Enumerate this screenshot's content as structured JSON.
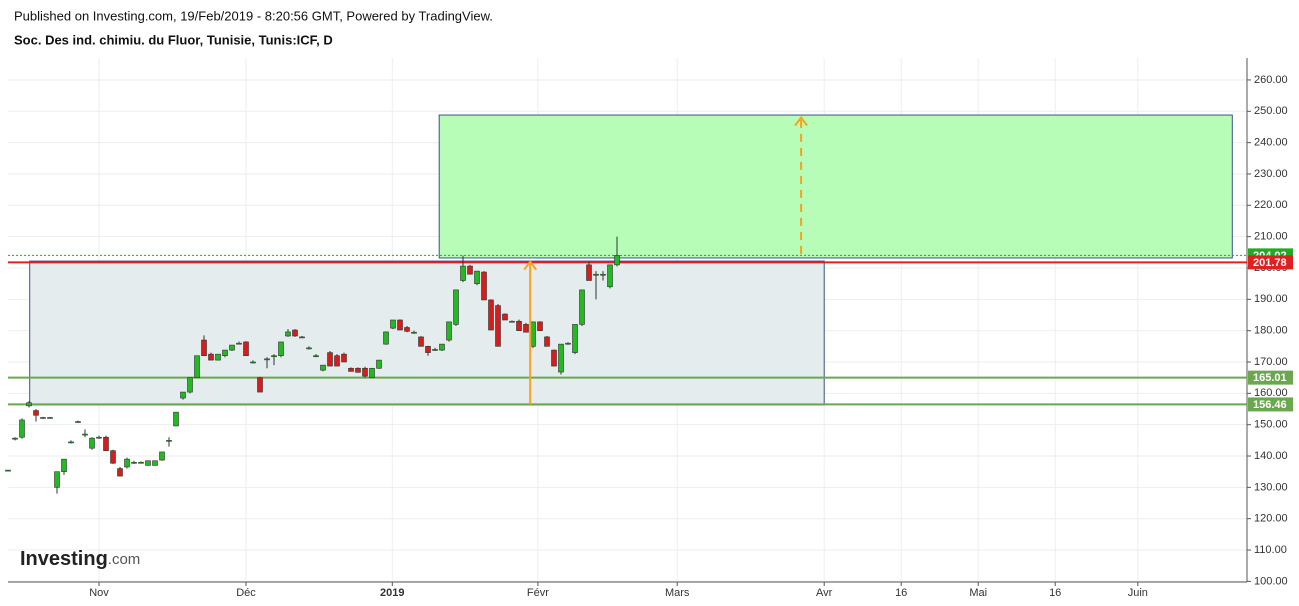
{
  "header": {
    "published": "Published on Investing.com, 19/Feb/2019 - 8:20:56 GMT, Powered by TradingView.",
    "instrument": "Soc. Des ind. chimiu. du Fluor, Tunisie, Tunis:ICF, D"
  },
  "logo": {
    "name": "Investing",
    "suffix": ".com"
  },
  "chart_data": {
    "type": "candlestick",
    "grid": true,
    "xlim": [
      -13,
      164
    ],
    "ylim": [
      99.8,
      267
    ],
    "xticks": [
      {
        "value": 0,
        "label": "Nov"
      },
      {
        "value": 21,
        "label": "Déc"
      },
      {
        "value": 41.9,
        "label": "2019"
      },
      {
        "value": 62.7,
        "label": "Févr"
      },
      {
        "value": 82.6,
        "label": "Mars"
      },
      {
        "value": 103.6,
        "label": "Avr"
      },
      {
        "value": 114.6,
        "label": "16"
      },
      {
        "value": 125.6,
        "label": "Mai"
      },
      {
        "value": 136.6,
        "label": "16"
      },
      {
        "value": 148.4,
        "label": "Juin"
      }
    ],
    "yticks": [
      {
        "value": 100,
        "label": "100.00"
      },
      {
        "value": 110,
        "label": "110.00"
      },
      {
        "value": 120,
        "label": "120.00"
      },
      {
        "value": 130,
        "label": "130.00"
      },
      {
        "value": 140,
        "label": "140.00"
      },
      {
        "value": 150,
        "label": "150.00"
      },
      {
        "value": 160,
        "label": "160.00"
      },
      {
        "value": 170,
        "label": "170.00"
      },
      {
        "value": 180,
        "label": "180.00"
      },
      {
        "value": 190,
        "label": "190.00"
      },
      {
        "value": 200,
        "label": "200.00"
      },
      {
        "value": 210,
        "label": "210.00"
      },
      {
        "value": 220,
        "label": "220.00"
      },
      {
        "value": 230,
        "label": "230.00"
      },
      {
        "value": 240,
        "label": "240.00"
      },
      {
        "value": 250,
        "label": "250.00"
      },
      {
        "value": 260,
        "label": "260.00"
      }
    ],
    "series": [
      {
        "up_color": "#22b922",
        "down_color": "#d41e1e",
        "x": [
          -13,
          -12,
          -11,
          -10,
          -9,
          -8,
          -7,
          -6,
          -5,
          -4,
          -3,
          -2,
          -1,
          0,
          1,
          2,
          3,
          4,
          5,
          6,
          7,
          8,
          9,
          10,
          11,
          12,
          13,
          14,
          15,
          16,
          17,
          18,
          19,
          20,
          21,
          22,
          23,
          24,
          25,
          26,
          27,
          28,
          29,
          30,
          31,
          32,
          33,
          34,
          35,
          36,
          37,
          38,
          39,
          40,
          41,
          42,
          43,
          44,
          45,
          46,
          47,
          48,
          49,
          50,
          51,
          52,
          53,
          54,
          55,
          56,
          57,
          58,
          59,
          60,
          61,
          62,
          63,
          64,
          65,
          66,
          67,
          68,
          69,
          70,
          71,
          72,
          73,
          74
        ],
        "open": [
          135.5,
          145.7,
          146,
          156,
          154.5,
          152.3,
          152.3,
          130,
          135,
          144.5,
          151,
          147,
          142.5,
          146,
          146,
          141.7,
          136,
          136.5,
          138,
          138,
          137,
          137,
          138.7,
          145,
          149.6,
          158.5,
          160.4,
          165,
          177,
          172.5,
          170.6,
          172,
          173.8,
          176,
          176.4,
          170,
          165,
          171,
          172,
          172,
          178.3,
          180.2,
          178,
          174.5,
          172,
          167.4,
          173,
          172,
          172.5,
          168,
          168,
          168,
          165,
          168,
          175.7,
          180.8,
          183.4,
          181,
          179.5,
          178,
          175,
          174,
          173.8,
          177,
          182,
          196,
          200.6,
          195,
          198.7,
          189.8,
          188,
          185.3,
          183,
          183,
          182,
          175,
          182.8,
          178,
          173.8,
          166.8,
          176,
          173,
          182,
          201,
          198,
          198,
          194,
          201
        ],
        "high": [
          135.5,
          146,
          152,
          157.5,
          155,
          152.5,
          152.5,
          135,
          139,
          145,
          151.3,
          148.5,
          146,
          146.5,
          146.5,
          142,
          136.5,
          139.5,
          138.5,
          138.3,
          138.5,
          138.5,
          141.3,
          146,
          154,
          160.4,
          165,
          172,
          178.5,
          173,
          172.5,
          173.8,
          175.4,
          176.5,
          176.6,
          170.5,
          165.2,
          171.5,
          172.5,
          176.4,
          180.5,
          180.5,
          178.3,
          175,
          172.5,
          169,
          173.5,
          172.5,
          173,
          168.3,
          168.3,
          168.5,
          168,
          170.6,
          179.6,
          183.4,
          183.6,
          181.5,
          180,
          178.2,
          175.2,
          174.5,
          175.7,
          182.8,
          193,
          204,
          201,
          199,
          199,
          190,
          188.5,
          185.5,
          183.3,
          183.5,
          182.5,
          182.8,
          183,
          178.3,
          174,
          175.7,
          176.3,
          182,
          193,
          202,
          199,
          199,
          201,
          210
        ],
        "low": [
          135.5,
          145,
          145.5,
          155.5,
          151,
          152,
          152,
          128,
          134,
          144,
          150.7,
          146,
          142,
          145.5,
          141.7,
          137.5,
          133.5,
          136,
          137.5,
          137.7,
          137,
          137,
          138.5,
          143,
          149.5,
          158,
          160,
          165,
          172,
          170.6,
          170.5,
          171.5,
          173.5,
          175.7,
          172,
          169.5,
          160.4,
          168,
          169,
          171.5,
          178,
          178,
          177.8,
          174,
          171.5,
          167,
          168.7,
          168.7,
          170,
          167,
          166.7,
          165,
          164.8,
          167.8,
          175.5,
          180.5,
          180.2,
          179.5,
          179,
          175,
          172,
          173.5,
          173.5,
          176.5,
          181.5,
          195.5,
          198,
          194.5,
          189.8,
          180.2,
          175,
          183.4,
          182.7,
          180,
          179.5,
          174.5,
          180,
          175,
          168.7,
          166,
          175.5,
          172.5,
          181.5,
          196,
          190,
          196,
          193.5,
          200.5
        ],
        "close": [
          135.5,
          145.7,
          151.5,
          157,
          153,
          152.3,
          152.3,
          135,
          139,
          144.5,
          151,
          147,
          145.7,
          146,
          141.7,
          137.7,
          133.6,
          139,
          138,
          138,
          138.5,
          138.5,
          141.3,
          145,
          154,
          160.4,
          165,
          172,
          172,
          170.6,
          172.5,
          173.8,
          175.4,
          176,
          172,
          170,
          160.4,
          171,
          172,
          176.4,
          179.6,
          178.3,
          178,
          174.5,
          172,
          169,
          168.7,
          168.7,
          170,
          167,
          166.7,
          165.5,
          168,
          170.6,
          179.6,
          183.4,
          180.2,
          179.8,
          179.5,
          175,
          173,
          174,
          175.7,
          182.8,
          193,
          200.6,
          198,
          199,
          189.8,
          180.2,
          175,
          183.4,
          183,
          180,
          179.5,
          182.8,
          180,
          175,
          168.7,
          175.7,
          176,
          182,
          193,
          196,
          198,
          198,
          201,
          204.02
        ]
      }
    ],
    "zones": [
      {
        "color": "#b7fdb7",
        "border": "#3b4f8f",
        "x": [
          48.6,
          161.9
        ],
        "y": [
          203.2,
          248.8
        ]
      },
      {
        "color": "#e4ecee",
        "border": "#3b4f8f",
        "x": [
          -9.9,
          103.6
        ],
        "y": [
          156.3,
          202.2
        ]
      }
    ],
    "arrows": [
      {
        "color": "#f7a21e",
        "dashed": false,
        "x": 61.6,
        "y": [
          156.5,
          202
        ]
      },
      {
        "color": "#f7a21e",
        "dashed": true,
        "x": 100.3,
        "y": [
          204.5,
          248
        ]
      }
    ],
    "levels": [
      {
        "value": 204.02,
        "color": "#22aa22",
        "style": "dotted"
      },
      {
        "value": 201.78,
        "color": "#e02020",
        "style": "solid"
      },
      {
        "value": 165.01,
        "color": "#6aa84f",
        "style": "solid"
      },
      {
        "value": 156.46,
        "color": "#6aa84f",
        "style": "solid"
      }
    ]
  }
}
